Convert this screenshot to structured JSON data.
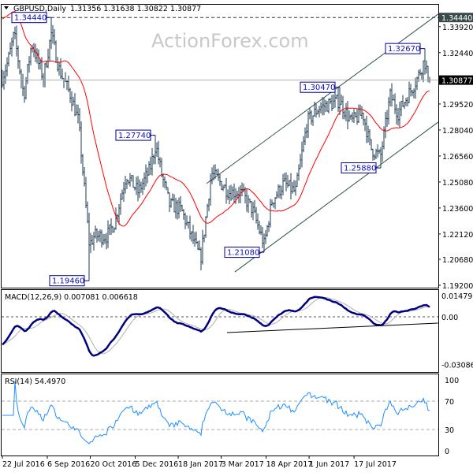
{
  "header": {
    "symbol_label": "GBPUSD,Daily",
    "ohlc": "1.31356 1.31638 1.30822 1.30877"
  },
  "watermark": "ActionForex.com",
  "colors": {
    "bars": "#1e3a52",
    "ma": "#ff0000",
    "macd": "#000080",
    "signal": "#b0b0b0",
    "rsi": "#1e90ff",
    "channel": "#2f4f4f",
    "current_price_bg": "#000000",
    "high_line_bg": "#3a4a4a",
    "label_border": "#000080"
  },
  "chart_data": [
    {
      "type": "ohlc",
      "title": "GBPUSD,Daily",
      "ylim": [
        1.192,
        1.3492
      ],
      "y_ticks": [
        "1.34440",
        "1.33920",
        "1.32440",
        "1.30877",
        "1.29520",
        "1.28040",
        "1.26560",
        "1.25080",
        "1.23600",
        "1.22120",
        "1.20680",
        "1.19200"
      ],
      "x_ticks": [
        "22 Jul 2016",
        "6 Sep 2016",
        "20 Oct 2016",
        "5 Dec 2016",
        "18 Jan 2017",
        "3 Mar 2017",
        "18 Apr 2017",
        "1 Jun 2017",
        "17 Jul 2017"
      ],
      "x_tick_dates": [
        "2016-07-22",
        "2016-09-06",
        "2016-10-20",
        "2016-12-05",
        "2017-01-18",
        "2017-03-03",
        "2017-04-18",
        "2017-06-01",
        "2017-07-17"
      ],
      "current_price": "1.30877",
      "close_path": [
        [
          "2016-07-22",
          1.31
        ],
        [
          "2016-07-28",
          1.32
        ],
        [
          "2016-08-03",
          1.335
        ],
        [
          "2016-08-13",
          1.3
        ],
        [
          "2016-08-21",
          1.33
        ],
        [
          "2016-09-02",
          1.31
        ],
        [
          "2016-09-10",
          1.335
        ],
        [
          "2016-09-18",
          1.315
        ],
        [
          "2016-09-30",
          1.3
        ],
        [
          "2016-10-08",
          1.285
        ],
        [
          "2016-10-15",
          1.24
        ],
        [
          "2016-10-19",
          1.215
        ],
        [
          "2016-10-24",
          1.22
        ],
        [
          "2016-11-06",
          1.22
        ],
        [
          "2016-11-14",
          1.228
        ],
        [
          "2016-11-26",
          1.255
        ],
        [
          "2016-12-08",
          1.245
        ],
        [
          "2016-12-20",
          1.258
        ],
        [
          "2016-12-26",
          1.272
        ],
        [
          "2017-01-01",
          1.255
        ],
        [
          "2017-01-09",
          1.238
        ],
        [
          "2017-01-21",
          1.235
        ],
        [
          "2017-02-02",
          1.218
        ],
        [
          "2017-02-10",
          1.207
        ],
        [
          "2017-02-21",
          1.256
        ],
        [
          "2017-03-11",
          1.245
        ],
        [
          "2017-03-23",
          1.245
        ],
        [
          "2017-04-04",
          1.235
        ],
        [
          "2017-04-16",
          1.215
        ],
        [
          "2017-04-24",
          1.24
        ],
        [
          "2017-05-06",
          1.25
        ],
        [
          "2017-05-18",
          1.245
        ],
        [
          "2017-05-30",
          1.285
        ],
        [
          "2017-06-11",
          1.293
        ],
        [
          "2017-07-02",
          1.297
        ],
        [
          "2017-07-14",
          1.285
        ],
        [
          "2017-07-26",
          1.29
        ],
        [
          "2017-08-03",
          1.27
        ],
        [
          "2017-08-13",
          1.265
        ],
        [
          "2017-08-23",
          1.3
        ],
        [
          "2017-08-31",
          1.29
        ],
        [
          "2017-09-12",
          1.302
        ],
        [
          "2017-09-20",
          1.31
        ],
        [
          "2017-09-27",
          1.32
        ],
        [
          "2017-10-02",
          1.30877
        ]
      ],
      "labeled_levels": [
        {
          "label": "1.34440",
          "date": "2016-09-10",
          "price": 1.3444,
          "kind": "high"
        },
        {
          "label": "1.19460",
          "date": "2016-10-19",
          "price": 1.1946,
          "kind": "low"
        },
        {
          "label": "1.27740",
          "date": "2016-12-26",
          "price": 1.2774,
          "kind": "high"
        },
        {
          "label": "1.21080",
          "date": "2017-04-16",
          "price": 1.2108,
          "kind": "low"
        },
        {
          "label": "1.30470",
          "date": "2017-07-02",
          "price": 1.3047,
          "kind": "high"
        },
        {
          "label": "1.25880",
          "date": "2017-08-13",
          "price": 1.2588,
          "kind": "low"
        },
        {
          "label": "1.32670",
          "date": "2017-09-27",
          "price": 1.3267,
          "kind": "high"
        }
      ],
      "trendlines": [
        {
          "name": "channel-upper",
          "from": [
            "2017-02-16",
            1.2499
          ],
          "to": [
            "2017-10-11",
            1.3463
          ]
        },
        {
          "name": "channel-lower",
          "from": [
            "2017-03-17",
            1.1996
          ],
          "to": [
            "2017-10-11",
            1.2848
          ]
        }
      ],
      "horizontal_lines": [
        {
          "price": 1.3444,
          "style": "dashed"
        },
        {
          "price": 1.30877,
          "style": "solid-gray"
        }
      ],
      "moving_average": {
        "color": "red"
      }
    },
    {
      "type": "line",
      "title": "MACD(12,26,9) 0.007081 0.006618",
      "ylim": [
        -0.030868,
        0.014797
      ],
      "y_ticks": [
        "0.014797",
        "0.00",
        "-0.030868"
      ],
      "series": [
        {
          "name": "MACD"
        },
        {
          "name": "Signal"
        }
      ],
      "trendline": {
        "from": [
          "2017-03-09",
          -0.0102
        ],
        "to": [
          "2017-10-11",
          -0.0041
        ]
      }
    },
    {
      "type": "line",
      "title": "RSI(14) 54.4970",
      "ylim": [
        0,
        100
      ],
      "y_ticks": [
        "100",
        "70",
        "30",
        "0"
      ],
      "levels": [
        70,
        30
      ]
    }
  ]
}
